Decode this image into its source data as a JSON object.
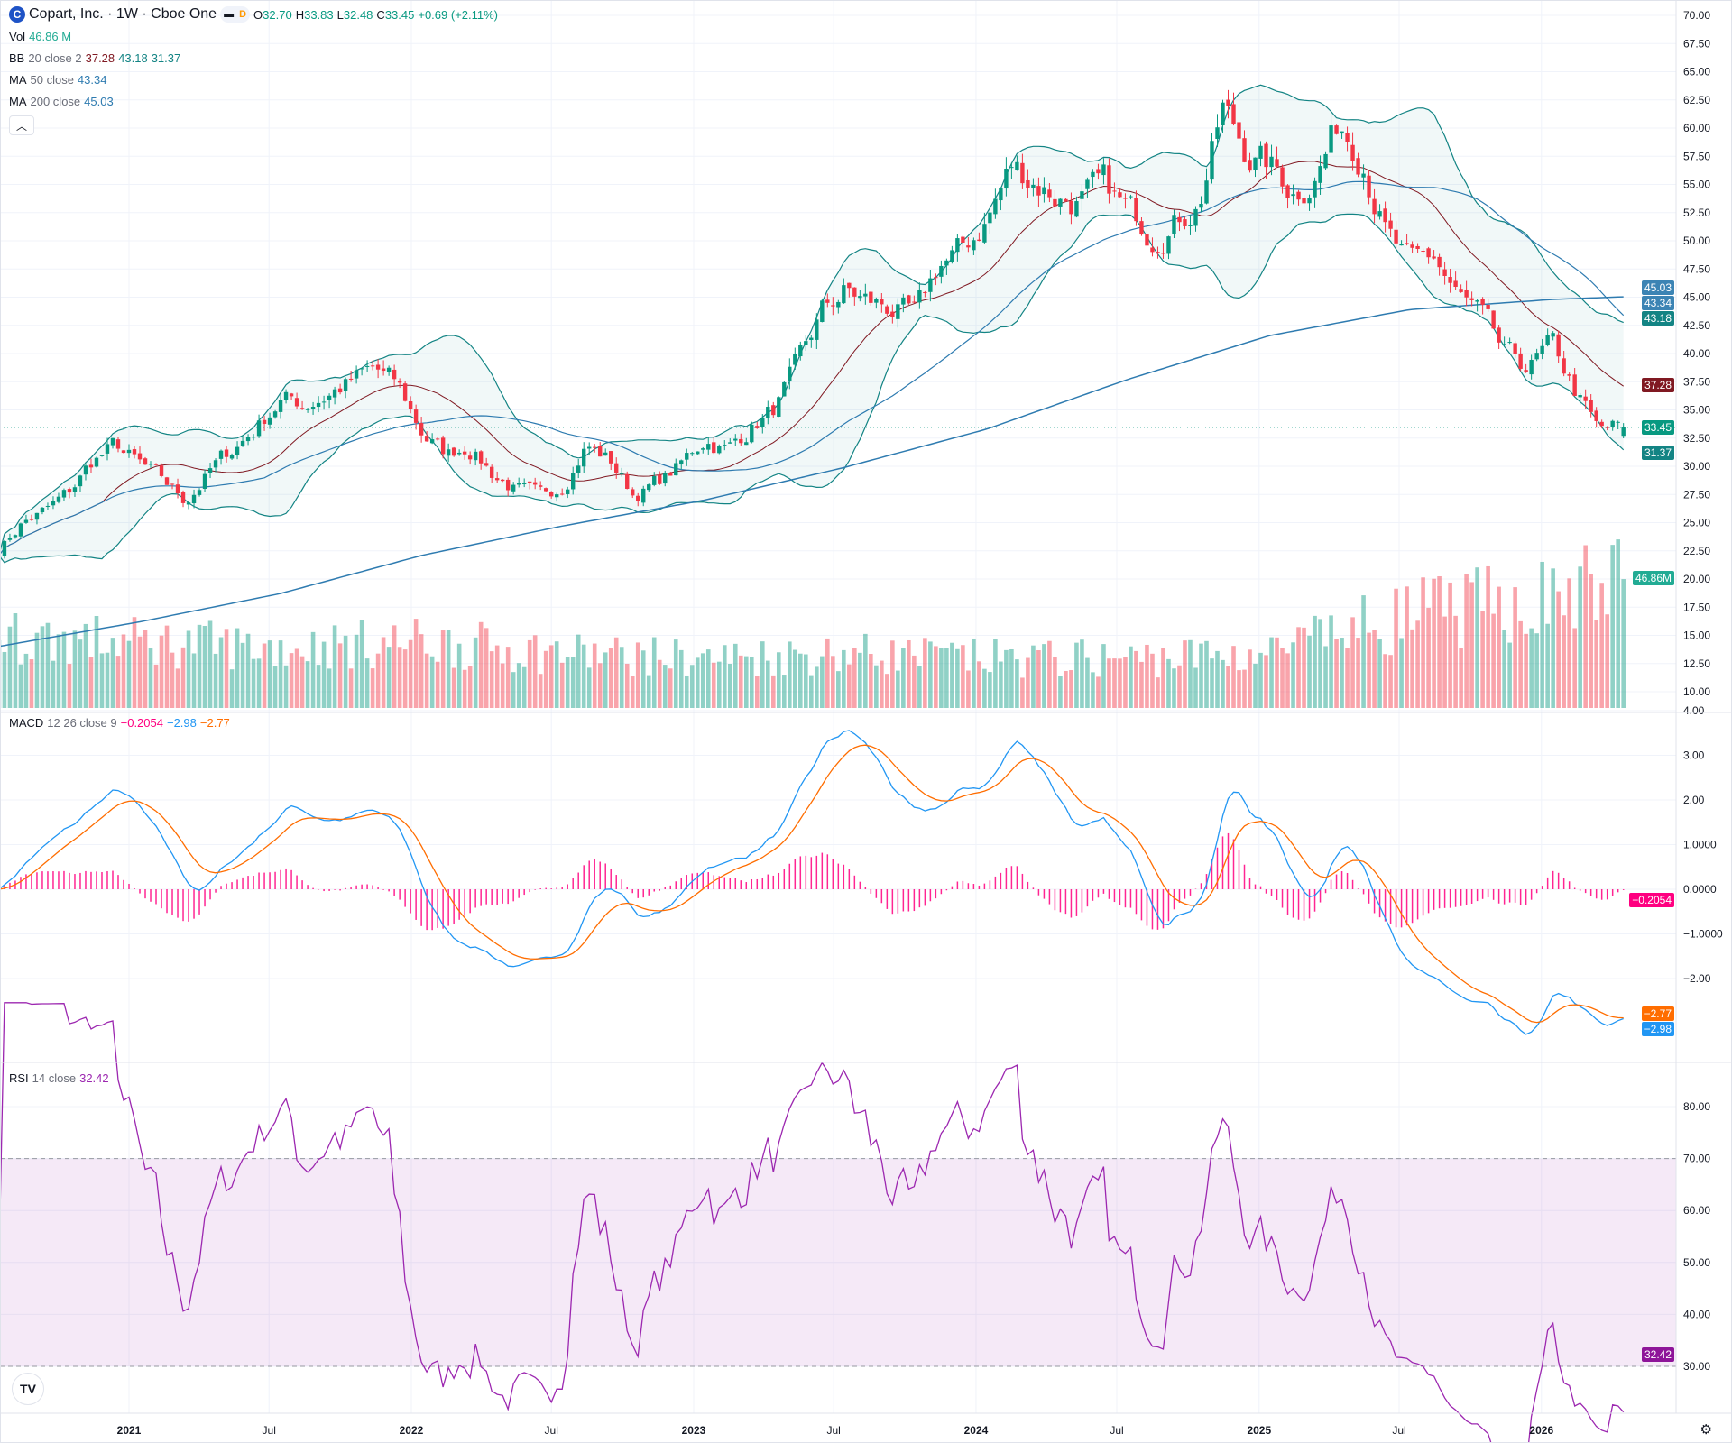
{
  "header": {
    "logo_letter": "C",
    "title": "Copart, Inc. · 1W · Cboe One",
    "badge_flag": "D",
    "ohlc": {
      "o_label": "O",
      "o": "32.70",
      "h_label": "H",
      "h": "33.83",
      "l_label": "L",
      "l": "32.48",
      "c_label": "C",
      "c": "33.45",
      "change": "+0.69 (+2.11%)"
    },
    "vol": {
      "label": "Vol",
      "value": "46.86 M"
    },
    "bb": {
      "label": "BB",
      "params": "20 close 2",
      "basis": "37.28",
      "upper": "43.18",
      "lower": "31.37"
    },
    "ma50": {
      "label": "MA",
      "params": "50 close",
      "value": "43.34"
    },
    "ma200": {
      "label": "MA",
      "params": "200 close",
      "value": "45.03"
    },
    "collapse_icon": "chevron-up-icon"
  },
  "macd_legend": {
    "label": "MACD",
    "params": "12 26 close 9",
    "hist": "−0.2054",
    "macd": "−2.98",
    "signal": "−2.77"
  },
  "rsi_legend": {
    "label": "RSI",
    "params": "14 close",
    "value": "32.42"
  },
  "price_axis_labels": {
    "ma200": "45.03",
    "ma50": "43.34",
    "bb_upper": "43.18",
    "bb_basis": "37.28",
    "last": "33.45",
    "bb_lower": "31.37",
    "volume": "46.86M"
  },
  "macd_axis_labels": {
    "hist": "−0.2054",
    "signal": "−2.77",
    "macd": "−2.98"
  },
  "rsi_axis_label": "32.42",
  "colors": {
    "up": "#089981",
    "down": "#f23645",
    "bb_band": "#138484",
    "bb_basis": "#801922",
    "ma": "#2e7bb0",
    "macd": "#2196f3",
    "signal": "#ff6d00",
    "hist": "#ff0080",
    "rsi": "#9c27b0"
  },
  "chart_data": {
    "type": "candlestick",
    "interval": "1W",
    "price_ticks": [
      "70.00",
      "67.50",
      "65.00",
      "62.50",
      "60.00",
      "57.50",
      "55.00",
      "52.50",
      "50.00",
      "47.50",
      "45.00",
      "42.50",
      "40.00",
      "37.50",
      "35.00",
      "32.50",
      "30.00",
      "27.50",
      "25.00",
      "22.50",
      "20.00",
      "17.50",
      "15.00",
      "12.50",
      "10.00"
    ],
    "macd_ticks": [
      "4.00",
      "3.00",
      "2.00",
      "1.0000",
      "0.0000",
      "−1.0000",
      "−2.00"
    ],
    "rsi_ticks": [
      "80.00",
      "70.00",
      "60.00",
      "50.00",
      "40.00",
      "30.00"
    ],
    "rsi_bands": [
      30,
      70
    ],
    "time_ticks": [
      {
        "label": "2021",
        "date": "2021-01-01",
        "bold": true
      },
      {
        "label": "Jul",
        "date": "2021-07-01",
        "bold": false
      },
      {
        "label": "2022",
        "date": "2022-01-01",
        "bold": true
      },
      {
        "label": "Jul",
        "date": "2022-07-01",
        "bold": false
      },
      {
        "label": "2023",
        "date": "2023-01-01",
        "bold": true
      },
      {
        "label": "Jul",
        "date": "2023-07-01",
        "bold": false
      },
      {
        "label": "2024",
        "date": "2024-01-01",
        "bold": true
      },
      {
        "label": "Jul",
        "date": "2024-07-01",
        "bold": false
      },
      {
        "label": "2025",
        "date": "2025-01-01",
        "bold": true
      },
      {
        "label": "Jul",
        "date": "2025-07-01",
        "bold": false
      },
      {
        "label": "2026",
        "date": "2026-01-01",
        "bold": true
      }
    ],
    "last_bar": {
      "open": 32.7,
      "high": 33.83,
      "low": 32.48,
      "close": 33.45,
      "volume_m": 46.86
    },
    "approx_monthly_close": [
      [
        "2020-07",
        22.5
      ],
      [
        "2020-08",
        25.0
      ],
      [
        "2020-09",
        26.0
      ],
      [
        "2020-10",
        27.5
      ],
      [
        "2020-11",
        30.5
      ],
      [
        "2020-12",
        31.8
      ],
      [
        "2021-01",
        30.0
      ],
      [
        "2021-02",
        28.5
      ],
      [
        "2021-03",
        27.0
      ],
      [
        "2021-04",
        29.5
      ],
      [
        "2021-05",
        31.5
      ],
      [
        "2021-06",
        33.5
      ],
      [
        "2021-07",
        36.0
      ],
      [
        "2021-08",
        35.5
      ],
      [
        "2021-09",
        36.5
      ],
      [
        "2021-10",
        37.5
      ],
      [
        "2021-11",
        38.5
      ],
      [
        "2021-12",
        37.0
      ],
      [
        "2022-01",
        33.0
      ],
      [
        "2022-02",
        31.0
      ],
      [
        "2022-03",
        32.0
      ],
      [
        "2022-04",
        29.5
      ],
      [
        "2022-05",
        28.0
      ],
      [
        "2022-06",
        27.0
      ],
      [
        "2022-07",
        28.5
      ],
      [
        "2022-08",
        32.0
      ],
      [
        "2022-09",
        30.5
      ],
      [
        "2022-10",
        27.5
      ],
      [
        "2022-11",
        28.5
      ],
      [
        "2022-12",
        30.0
      ],
      [
        "2023-01",
        32.5
      ],
      [
        "2023-02",
        31.5
      ],
      [
        "2023-03",
        33.5
      ],
      [
        "2023-04",
        35.0
      ],
      [
        "2023-05",
        38.5
      ],
      [
        "2023-06",
        43.5
      ],
      [
        "2023-07",
        45.5
      ],
      [
        "2023-08",
        44.5
      ],
      [
        "2023-09",
        44.0
      ],
      [
        "2023-10",
        43.0
      ],
      [
        "2023-11",
        48.0
      ],
      [
        "2023-12",
        49.0
      ],
      [
        "2024-01",
        52.0
      ],
      [
        "2024-02",
        56.5
      ],
      [
        "2024-03",
        55.5
      ],
      [
        "2024-04",
        54.0
      ],
      [
        "2024-05",
        53.5
      ],
      [
        "2024-06",
        54.5
      ],
      [
        "2024-07",
        52.5
      ],
      [
        "2024-08",
        51.0
      ],
      [
        "2024-09",
        52.0
      ],
      [
        "2024-10",
        53.5
      ],
      [
        "2024-11",
        61.5
      ],
      [
        "2024-12",
        58.0
      ],
      [
        "2025-01",
        56.5
      ],
      [
        "2025-02",
        54.5
      ],
      [
        "2025-03",
        56.0
      ],
      [
        "2025-04",
        60.5
      ],
      [
        "2025-05",
        58.0
      ],
      [
        "2025-06",
        50.5
      ],
      [
        "2025-07",
        47.5
      ],
      [
        "2025-08",
        48.5
      ],
      [
        "2025-09",
        45.0
      ],
      [
        "2025-10",
        43.0
      ],
      [
        "2025-11",
        39.5
      ],
      [
        "2025-12",
        38.8
      ],
      [
        "2026-01",
        40.5
      ],
      [
        "2026-02",
        36.5
      ],
      [
        "2026-03",
        33.0
      ],
      [
        "2026-04",
        33.45
      ]
    ],
    "approx_ma200": [
      [
        "2020-07",
        14.0
      ],
      [
        "2021-01",
        16.2
      ],
      [
        "2021-07",
        18.7
      ],
      [
        "2022-01",
        22.1
      ],
      [
        "2022-07",
        24.7
      ],
      [
        "2023-01",
        27.0
      ],
      [
        "2023-07",
        29.9
      ],
      [
        "2024-01",
        33.3
      ],
      [
        "2024-07",
        37.7
      ],
      [
        "2025-01",
        41.6
      ],
      [
        "2025-07",
        43.9
      ],
      [
        "2026-01",
        44.8
      ],
      [
        "2026-04",
        45.03
      ]
    ],
    "approx_volume_m": [
      [
        "2020-07",
        26
      ],
      [
        "2021-01",
        24
      ],
      [
        "2021-07",
        22
      ],
      [
        "2022-01",
        24
      ],
      [
        "2022-07",
        20
      ],
      [
        "2023-01",
        18
      ],
      [
        "2023-07",
        20
      ],
      [
        "2024-01",
        18
      ],
      [
        "2024-07",
        18
      ],
      [
        "2025-01",
        20
      ],
      [
        "2025-07",
        34
      ],
      [
        "2026-01",
        40
      ],
      [
        "2026-04",
        46.86
      ]
    ]
  }
}
